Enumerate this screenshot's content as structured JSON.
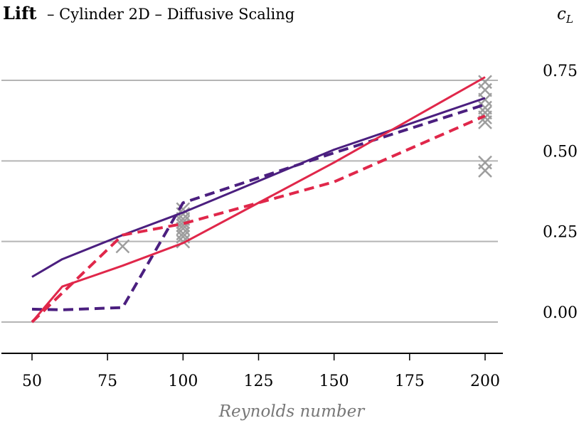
{
  "chart_data": {
    "type": "line",
    "title": "Lift",
    "subtitle": "– Cylinder 2D – Diffusive Scaling",
    "xlabel": "Reynolds number",
    "ylabel_main": "c",
    "ylabel_sub": "L",
    "xlim": [
      40,
      205
    ],
    "ylim": [
      -0.14,
      0.8
    ],
    "xticks": [
      50,
      75,
      100,
      125,
      150,
      175,
      200
    ],
    "xtick_labels": [
      "50",
      "75",
      "100",
      "125",
      "150",
      "175",
      "200"
    ],
    "yticks": [
      0.0,
      0.25,
      0.5,
      0.75
    ],
    "ytick_labels": [
      "0.00",
      "0.25",
      "0.50",
      "0.75"
    ],
    "grid": "horizontal",
    "colors": {
      "purple": "#4b1f7f",
      "red": "#e0274a",
      "reference": "#9e9e9e",
      "grid": "#b5b5b5",
      "axis": "#000000"
    },
    "series": [
      {
        "color": "#4b1f7f",
        "dash": "solid",
        "x": [
          50,
          60,
          80,
          100,
          150,
          200
        ],
        "y": [
          0.14,
          0.195,
          0.27,
          0.34,
          0.535,
          0.695
        ]
      },
      {
        "color": "#4b1f7f",
        "dash": "dashed",
        "x": [
          50,
          60,
          80,
          100,
          150,
          200
        ],
        "y": [
          0.04,
          0.038,
          0.045,
          0.37,
          0.525,
          0.675
        ]
      },
      {
        "color": "#e0274a",
        "dash": "solid",
        "x": [
          50,
          60,
          80,
          100,
          150,
          200
        ],
        "y": [
          0.0,
          0.11,
          0.175,
          0.245,
          0.495,
          0.76
        ]
      },
      {
        "color": "#e0274a",
        "dash": "dashed",
        "x": [
          50,
          60,
          80,
          100,
          150,
          200
        ],
        "y": [
          0.0,
          0.09,
          0.27,
          0.305,
          0.435,
          0.64
        ]
      }
    ],
    "reference_points": {
      "marker": "x",
      "x": [
        80,
        100,
        100,
        100,
        100,
        100,
        100,
        100,
        100,
        100,
        200,
        200,
        200,
        200,
        200,
        200,
        200,
        200,
        200
      ],
      "y": [
        0.235,
        0.35,
        0.335,
        0.32,
        0.31,
        0.3,
        0.29,
        0.275,
        0.265,
        0.25,
        0.745,
        0.72,
        0.69,
        0.665,
        0.65,
        0.635,
        0.62,
        0.495,
        0.47
      ]
    }
  }
}
